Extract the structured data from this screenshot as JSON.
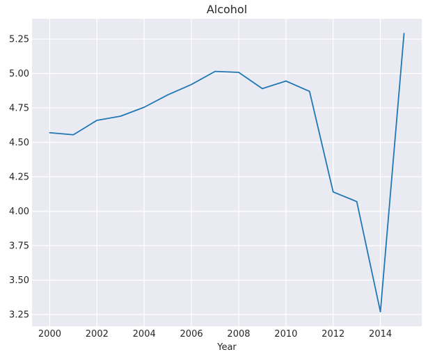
{
  "chart_data": {
    "type": "line",
    "title": "Alcohol",
    "xlabel": "Year",
    "ylabel": "",
    "xlim": [
      1999.25,
      2015.75
    ],
    "ylim": [
      3.165,
      5.397
    ],
    "grid": true,
    "x_ticks": [
      2000,
      2002,
      2004,
      2006,
      2008,
      2010,
      2012,
      2014
    ],
    "y_ticks": [
      3.25,
      3.5,
      3.75,
      4.0,
      4.25,
      4.5,
      4.75,
      5.0,
      5.25
    ],
    "x_tick_labels": [
      "2000",
      "2002",
      "2004",
      "2006",
      "2008",
      "2010",
      "2012",
      "2014"
    ],
    "y_tick_labels": [
      "3.25",
      "3.50",
      "3.75",
      "4.00",
      "4.25",
      "4.50",
      "4.75",
      "5.00",
      "5.25"
    ],
    "series": [
      {
        "color": "#1f77b4",
        "x": [
          2000,
          2001,
          2002,
          2003,
          2004,
          2005,
          2006,
          2007,
          2008,
          2009,
          2010,
          2011,
          2012,
          2013,
          2014,
          2015
        ],
        "values": [
          4.57,
          4.555,
          4.66,
          4.69,
          4.755,
          4.845,
          4.92,
          5.015,
          5.008,
          4.89,
          4.945,
          4.87,
          4.14,
          4.07,
          3.27,
          5.29
        ]
      }
    ],
    "colors": {
      "plot_background": "#eaeaf2",
      "grid": "#ffffff",
      "text": "#262626"
    }
  }
}
